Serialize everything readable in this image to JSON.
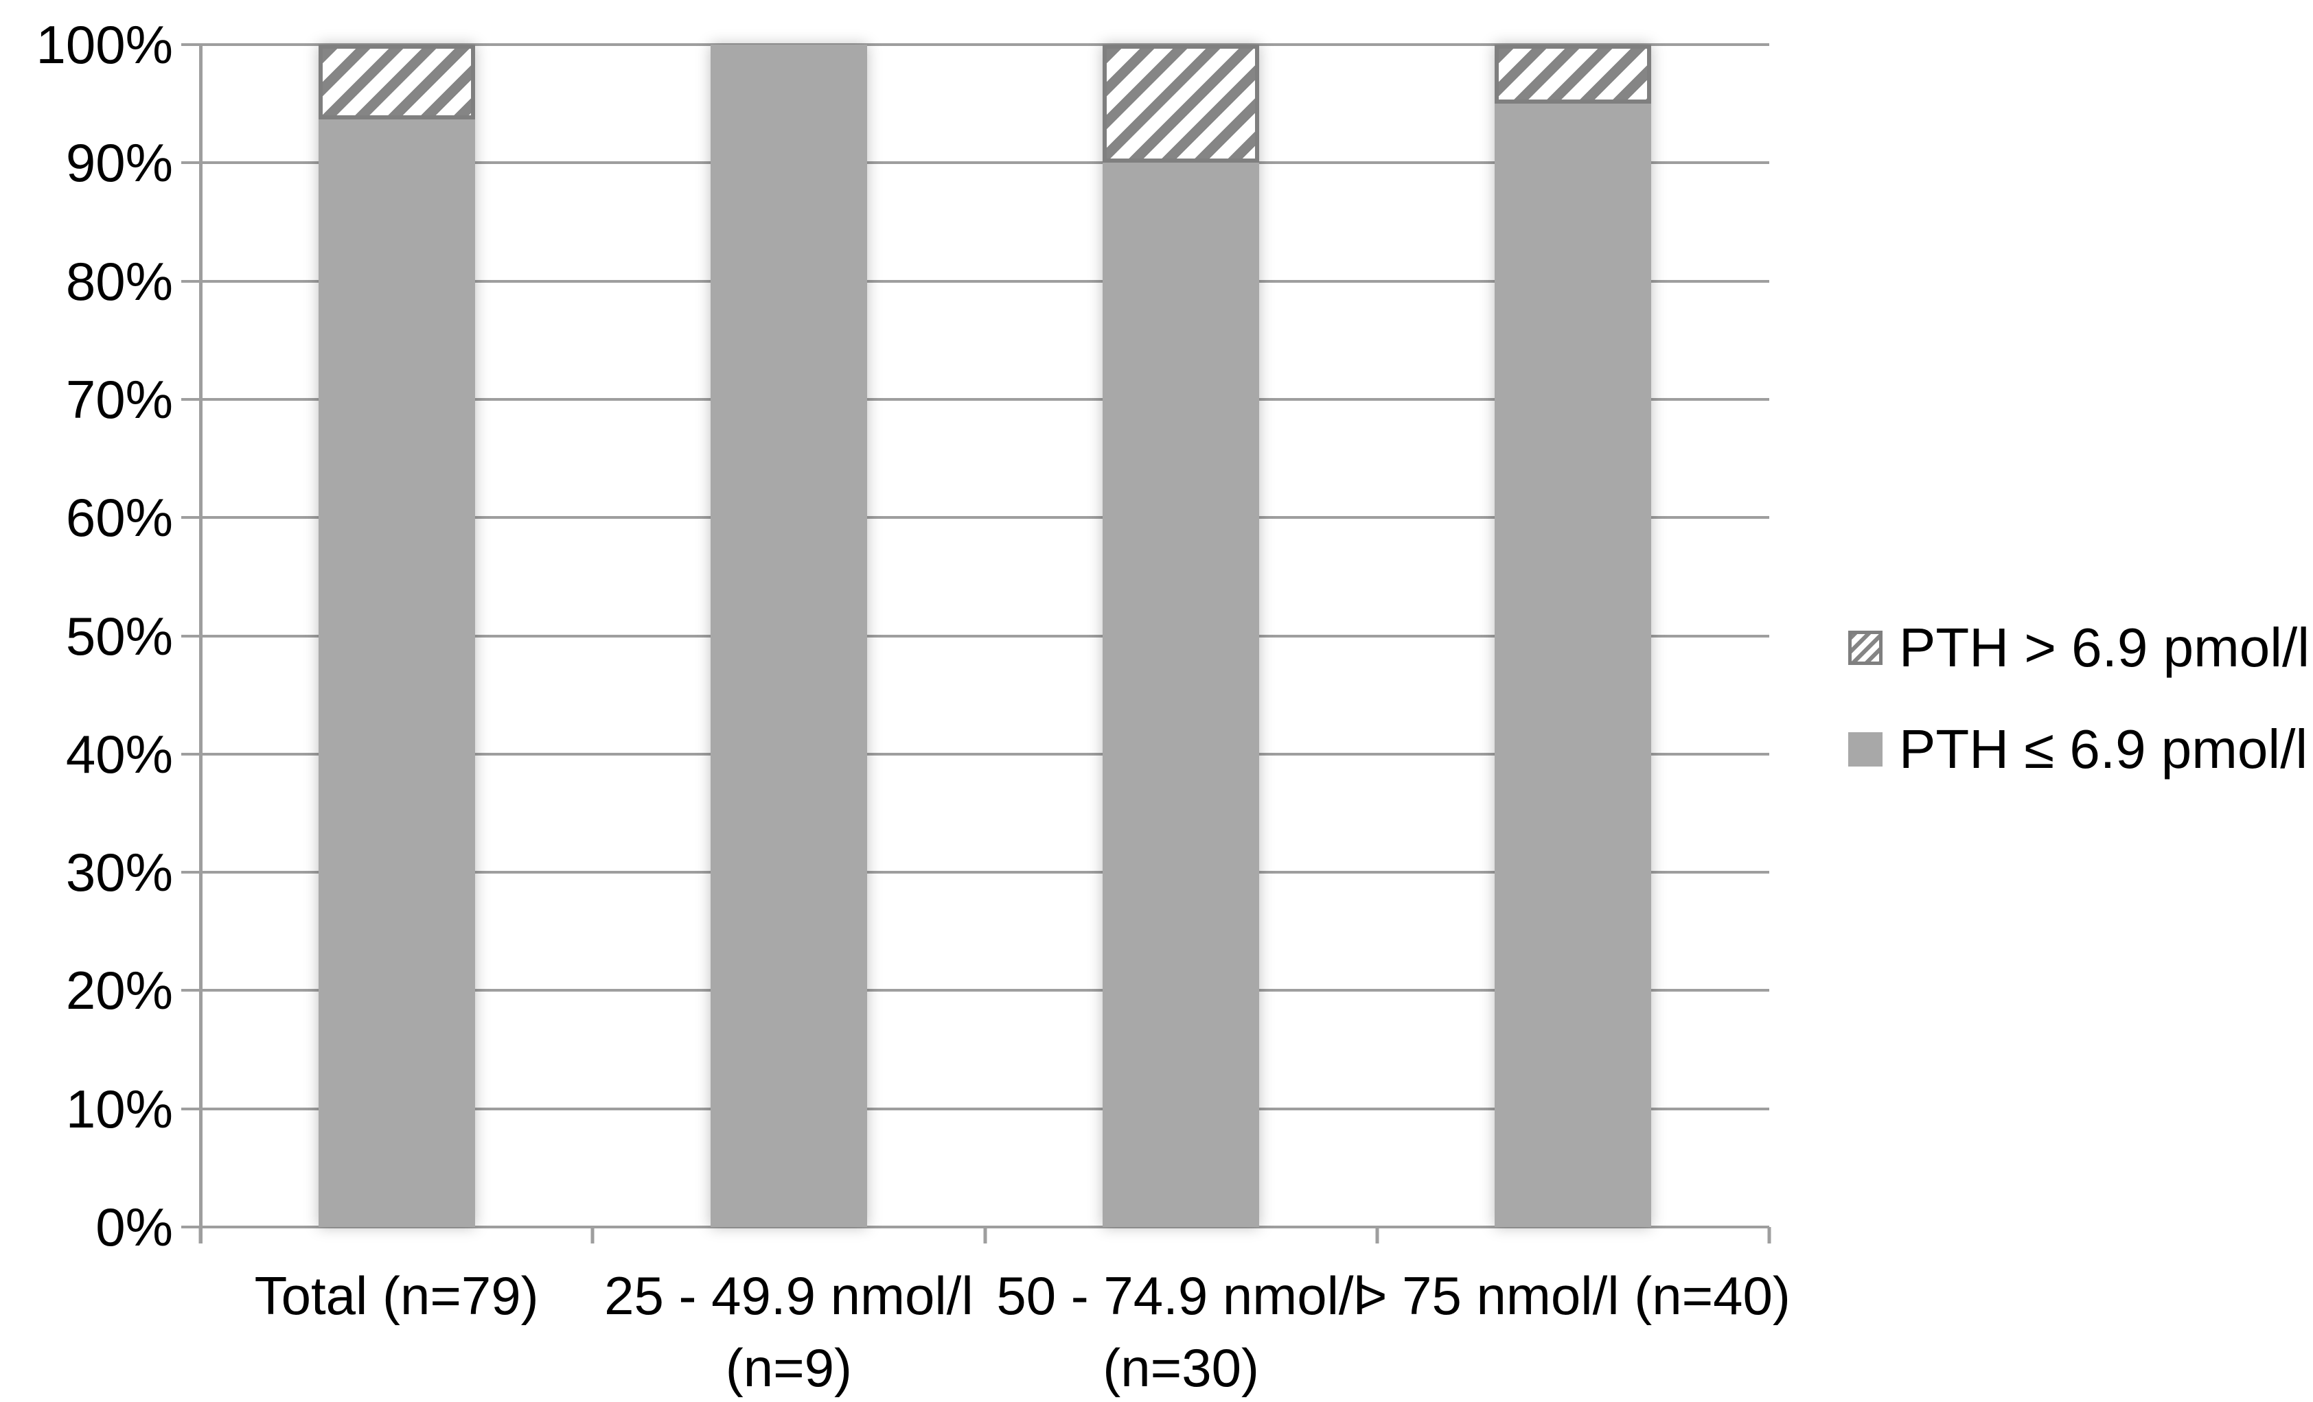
{
  "figure": {
    "background": "#ffffff",
    "text_color": "#000000",
    "gridline_color": "#9e9e9e",
    "axis_color": "#9e9e9e",
    "bar_solid_color": "#a8a8a8",
    "hatch_stripe_color": "#858585",
    "hatch_background_color": "#ffffff",
    "hatch_border_color": "#7f7f7f"
  },
  "legend": {
    "position": "right-middle",
    "items": [
      {
        "label": "PTH > 6.9 pmol/l",
        "swatch": "hatched"
      },
      {
        "label": "PTH ≤ 6.9 pmol/l",
        "swatch": "solid"
      }
    ]
  },
  "chart_data": {
    "type": "bar",
    "subtype": "percent-stacked-column",
    "title": "",
    "xlabel": "",
    "ylabel": "",
    "categories": [
      "Total (n=79)",
      "25 - 49.9 nmol/l (n=9)",
      "50 - 74.9 nmol/l (n=30)",
      "> 75 nmol/l (n=40)"
    ],
    "category_label_lines": [
      [
        "Total (n=79)"
      ],
      [
        "25 - 49.9 nmol/l",
        "(n=9)"
      ],
      [
        "50 - 74.9 nmol/l",
        "(n=30)"
      ],
      [
        "> 75 nmol/l (n=40)"
      ]
    ],
    "sample_sizes": [
      79,
      9,
      30,
      40
    ],
    "series": [
      {
        "name": "PTH ≤ 6.9 pmol/l",
        "style": "solid",
        "stack_position": "bottom",
        "values_pct": [
          93.7,
          100,
          90,
          95
        ]
      },
      {
        "name": "PTH > 6.9 pmol/l",
        "style": "hatched",
        "stack_position": "top",
        "values_pct": [
          6.3,
          0,
          10,
          5
        ]
      }
    ],
    "ylim": [
      0,
      100
    ],
    "y_ticks": [
      "100%",
      "90%",
      "80%",
      "70%",
      "60%",
      "50%",
      "40%",
      "30%",
      "20%",
      "10%",
      "0%"
    ],
    "y_tick_values": [
      100,
      90,
      80,
      70,
      60,
      50,
      40,
      30,
      20,
      10,
      0
    ],
    "grid": true,
    "legend_position": "right"
  }
}
